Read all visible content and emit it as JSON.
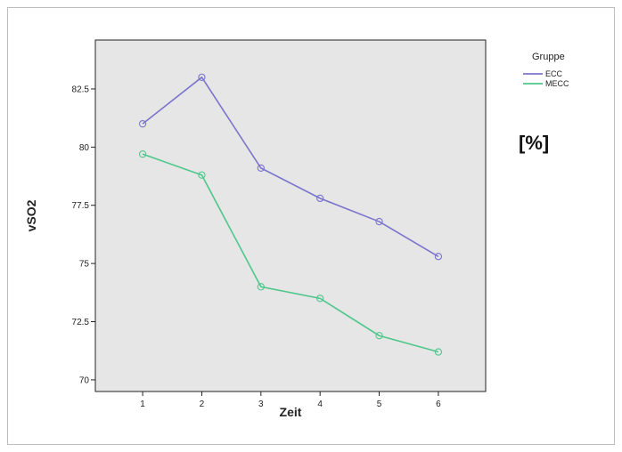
{
  "chart_data": {
    "type": "line",
    "x": [
      1,
      2,
      3,
      4,
      5,
      6
    ],
    "xlabel": "Zeit",
    "ylabel": "vSO2",
    "ylim": [
      69.5,
      84.6
    ],
    "xlim": [
      0.2,
      6.8
    ],
    "yticks": [
      70,
      72.5,
      75,
      77.5,
      80,
      82.5
    ],
    "ytick_labels": [
      "70",
      "72.5",
      "75",
      "77.5",
      "80",
      "82.5"
    ],
    "xtick_labels": [
      "1",
      "2",
      "3",
      "4",
      "5",
      "6"
    ],
    "grid": false,
    "legend": {
      "title": "Gruppe",
      "position": "top-right outside"
    },
    "annotation": "[%]",
    "plot_background": "#e6e6e6",
    "series": [
      {
        "name": "ECC",
        "color": "#7b74cc",
        "values": [
          81.0,
          83.0,
          79.1,
          77.8,
          76.8,
          75.3
        ]
      },
      {
        "name": "MECC",
        "color": "#4fc78c",
        "values": [
          79.7,
          78.8,
          74.0,
          73.5,
          71.9,
          71.2
        ]
      }
    ]
  }
}
